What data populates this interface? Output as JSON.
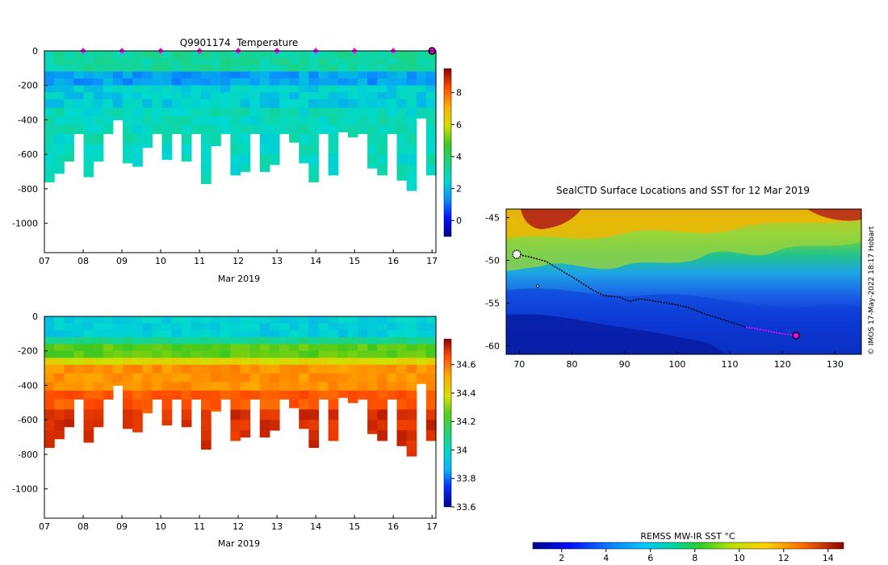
{
  "chart_data": [
    {
      "id": "temperature",
      "type": "heatmap",
      "title": "Q9901174  Temperature",
      "xlabel": "Mar 2019",
      "ylabel": "",
      "x_ticks": [
        "07",
        "08",
        "09",
        "10",
        "11",
        "12",
        "13",
        "14",
        "15",
        "16",
        "17"
      ],
      "x_range": [
        7.0,
        17.1
      ],
      "y_ticks": [
        0,
        -200,
        -400,
        -600,
        -800,
        -1000
      ],
      "ylim": [
        -1170,
        0
      ],
      "colorbar": {
        "ticks": [
          0,
          2,
          4,
          6,
          8
        ],
        "range": [
          -1,
          9.5
        ]
      },
      "surface_markers_days": [
        8,
        9,
        10,
        11,
        12,
        13,
        14,
        15,
        16
      ],
      "last_position_day": 17,
      "profile_max_depths": [
        760,
        710,
        640,
        480,
        730,
        640,
        480,
        400,
        650,
        670,
        560,
        480,
        630,
        480,
        640,
        480,
        770,
        550,
        480,
        720,
        700,
        480,
        700,
        660,
        480,
        530,
        650,
        760,
        480,
        720,
        470,
        500,
        480,
        680,
        720,
        480,
        750,
        810,
        390,
        720
      ]
    },
    {
      "id": "salinity",
      "type": "heatmap",
      "title": "",
      "xlabel": "Mar 2019",
      "ylabel": "",
      "x_ticks": [
        "07",
        "08",
        "09",
        "10",
        "11",
        "12",
        "13",
        "14",
        "15",
        "16",
        "17"
      ],
      "x_range": [
        7.0,
        17.1
      ],
      "y_ticks": [
        0,
        -200,
        -400,
        -600,
        -800,
        -1000
      ],
      "ylim": [
        -1170,
        0
      ],
      "colorbar": {
        "ticks": [
          33.6,
          33.8,
          34,
          34.2,
          34.4,
          34.6
        ],
        "range": [
          33.6,
          34.78
        ]
      },
      "profile_max_depths": [
        760,
        710,
        640,
        480,
        730,
        640,
        480,
        400,
        650,
        670,
        560,
        480,
        630,
        480,
        640,
        480,
        770,
        550,
        480,
        720,
        700,
        480,
        700,
        660,
        480,
        530,
        650,
        760,
        480,
        720,
        470,
        500,
        480,
        680,
        720,
        480,
        750,
        810,
        390,
        720
      ]
    },
    {
      "id": "sst-map",
      "type": "heatmap",
      "title": "SealCTD Surface Locations and SST for 12 Mar 2019",
      "x_ticks": [
        70,
        80,
        90,
        100,
        110,
        120,
        130
      ],
      "y_ticks": [
        -45,
        -50,
        -55,
        -60
      ],
      "xlim": [
        67.5,
        135
      ],
      "ylim": [
        -61,
        -44
      ],
      "track": [
        [
          69.5,
          -49.3
        ],
        [
          72,
          -49.6
        ],
        [
          75,
          -50.1
        ],
        [
          78,
          -51.2
        ],
        [
          81,
          -52.3
        ],
        [
          84,
          -53.5
        ],
        [
          86,
          -54.1
        ],
        [
          89,
          -54.3
        ],
        [
          91,
          -54.8
        ],
        [
          93,
          -54.5
        ],
        [
          96,
          -54.8
        ],
        [
          99,
          -55.1
        ],
        [
          102,
          -55.5
        ],
        [
          105,
          -56.2
        ],
        [
          108,
          -56.8
        ],
        [
          111,
          -57.4
        ],
        [
          113,
          -57.8
        ]
      ],
      "recent_track": [
        [
          113,
          -57.8
        ],
        [
          116,
          -58.1
        ],
        [
          119,
          -58.5
        ],
        [
          122.6,
          -58.8
        ]
      ],
      "colorbar": {
        "label": "REMSS MW-IR SST °C",
        "ticks": [
          2,
          4,
          6,
          8,
          10,
          12,
          14
        ],
        "range": [
          0.7,
          14.7
        ]
      },
      "credit": "©  IMOS 17-May-2022 18:17 Hobart"
    }
  ]
}
